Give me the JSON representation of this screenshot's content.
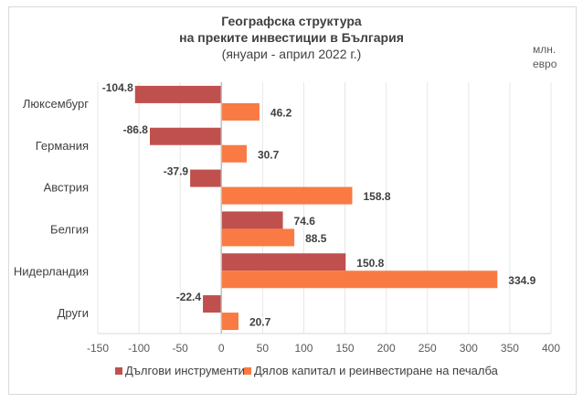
{
  "chart_data": {
    "type": "bar",
    "orientation": "horizontal",
    "title": "Географска структура",
    "title_line2": "на преките инвестиции в България",
    "subtitle": "(януари - април 2022 г.)",
    "unit_line1": "млн.",
    "unit_line2": "евро",
    "categories": [
      "Люксембург",
      "Германия",
      "Австрия",
      "Белгия",
      "Нидерландия",
      "Други"
    ],
    "series": [
      {
        "name": "Дългови инструменти",
        "color": "#C0504D",
        "values": [
          -104.8,
          -86.8,
          -37.9,
          74.6,
          150.8,
          -22.4
        ],
        "labels": [
          "-104.8",
          "-86.8",
          "-37.9",
          "74.6",
          "150.8",
          "-22.4"
        ]
      },
      {
        "name": "Дялов капитал и реинвестиране на печалба",
        "color": "#F97A42",
        "values": [
          46.2,
          30.7,
          158.8,
          88.5,
          334.9,
          20.7
        ],
        "labels": [
          "46.2",
          "30.7",
          "158.8",
          "88.5",
          "334.9",
          "20.7"
        ]
      }
    ],
    "xlim": [
      -150,
      400
    ],
    "xticks": [
      -150,
      -100,
      -50,
      0,
      50,
      100,
      150,
      200,
      250,
      300,
      350,
      400
    ],
    "xtick_labels": [
      "-150",
      "-100",
      "-50",
      "0",
      "50",
      "100",
      "150",
      "200",
      "250",
      "300",
      "350",
      "400"
    ],
    "grid": true,
    "legend_position": "bottom"
  }
}
